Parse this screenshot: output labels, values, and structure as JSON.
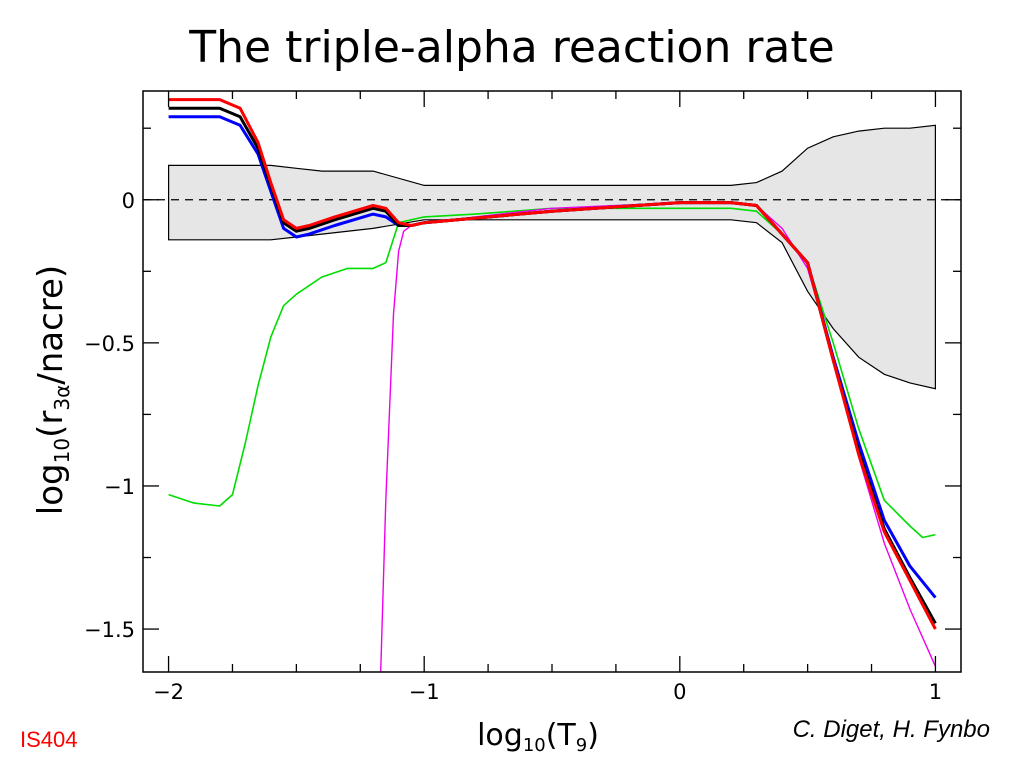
{
  "slide": {
    "title": "The triple-alpha reaction rate",
    "experiment_tag": "IS404",
    "credit": "C. Diget, H. Fynbo"
  },
  "chart_data": {
    "type": "line",
    "xlabel_main": "log",
    "xlabel_sub": "10",
    "xlabel_arg": "(T",
    "xlabel_arg_sub": "9",
    "xlabel_close": ")",
    "ylabel_main": "log",
    "ylabel_sub": "10",
    "ylabel_arg": "(r",
    "ylabel_arg_sub": "3α",
    "ylabel_rest": "/nacre)",
    "xlim": [
      -2.1,
      1.1
    ],
    "ylim": [
      -1.65,
      0.38
    ],
    "x_ticks": [
      {
        "value": -2,
        "label": "−2"
      },
      {
        "value": -1,
        "label": "−1"
      },
      {
        "value": 0,
        "label": "0"
      },
      {
        "value": 1,
        "label": "1"
      }
    ],
    "y_ticks": [
      {
        "value": 0,
        "label": "0"
      },
      {
        "value": -0.5,
        "label": "−0.5"
      },
      {
        "value": -1,
        "label": "−1"
      },
      {
        "value": -1.5,
        "label": "−1.5"
      }
    ],
    "x_minor_step": 0.25,
    "y_minor_step": 0.25,
    "reference_line": {
      "y": 0,
      "style": "dashed"
    },
    "band": {
      "name": "uncertainty",
      "fill": "#e6e6e6",
      "stroke": "#000000",
      "x": [
        -2.0,
        -1.6,
        -1.5,
        -1.4,
        -1.2,
        -1.0,
        -0.5,
        0.0,
        0.2,
        0.3,
        0.4,
        0.5,
        0.6,
        0.7,
        0.8,
        0.9,
        1.0
      ],
      "upper": [
        0.12,
        0.12,
        0.11,
        0.1,
        0.1,
        0.05,
        0.05,
        0.05,
        0.05,
        0.06,
        0.1,
        0.18,
        0.22,
        0.24,
        0.25,
        0.25,
        0.26
      ],
      "lower": [
        -0.14,
        -0.14,
        -0.13,
        -0.12,
        -0.1,
        -0.07,
        -0.07,
        -0.07,
        -0.07,
        -0.08,
        -0.15,
        -0.32,
        -0.45,
        -0.55,
        -0.61,
        -0.64,
        -0.66
      ]
    },
    "series": [
      {
        "color": "#00dd00",
        "width": 1.6,
        "x": [
          -2.0,
          -1.9,
          -1.8,
          -1.75,
          -1.7,
          -1.65,
          -1.6,
          -1.55,
          -1.5,
          -1.4,
          -1.3,
          -1.2,
          -1.15,
          -1.1,
          -1.0,
          -0.8,
          -0.5,
          0.0,
          0.2,
          0.3,
          0.4,
          0.5,
          0.6,
          0.7,
          0.8,
          0.9,
          0.95,
          1.0
        ],
        "y": [
          -1.03,
          -1.06,
          -1.07,
          -1.03,
          -0.85,
          -0.65,
          -0.48,
          -0.37,
          -0.33,
          -0.27,
          -0.24,
          -0.24,
          -0.22,
          -0.08,
          -0.06,
          -0.05,
          -0.03,
          -0.03,
          -0.03,
          -0.04,
          -0.12,
          -0.22,
          -0.5,
          -0.8,
          -1.05,
          -1.14,
          -1.18,
          -1.17
        ]
      },
      {
        "color": "#ee00ee",
        "width": 1.4,
        "x": [
          -1.17,
          -1.15,
          -1.12,
          -1.1,
          -1.08,
          -1.05,
          -1.0,
          -0.8,
          -0.5,
          0.0,
          0.2,
          0.3,
          0.4,
          0.5,
          0.6,
          0.7,
          0.8,
          0.9,
          1.0
        ],
        "y": [
          -1.65,
          -1.05,
          -0.4,
          -0.18,
          -0.11,
          -0.09,
          -0.08,
          -0.06,
          -0.03,
          -0.01,
          -0.01,
          -0.02,
          -0.1,
          -0.24,
          -0.55,
          -0.9,
          -1.2,
          -1.43,
          -1.63
        ]
      },
      {
        "color": "#0000ff",
        "width": 3,
        "x": [
          -2.0,
          -1.8,
          -1.72,
          -1.65,
          -1.6,
          -1.55,
          -1.5,
          -1.45,
          -1.35,
          -1.2,
          -1.15,
          -1.1,
          -1.05,
          -1.0,
          -0.5,
          0.0,
          0.2,
          0.3,
          0.4,
          0.5,
          0.6,
          0.7,
          0.8,
          0.9,
          1.0
        ],
        "y": [
          0.29,
          0.29,
          0.26,
          0.16,
          0.03,
          -0.1,
          -0.13,
          -0.12,
          -0.09,
          -0.05,
          -0.06,
          -0.09,
          -0.09,
          -0.08,
          -0.04,
          -0.01,
          -0.01,
          -0.02,
          -0.12,
          -0.22,
          -0.55,
          -0.85,
          -1.12,
          -1.28,
          -1.39
        ]
      },
      {
        "color": "#000000",
        "width": 3,
        "x": [
          -2.0,
          -1.8,
          -1.72,
          -1.65,
          -1.6,
          -1.55,
          -1.5,
          -1.45,
          -1.35,
          -1.2,
          -1.15,
          -1.1,
          -1.05,
          -1.0,
          -0.5,
          0.0,
          0.2,
          0.3,
          0.4,
          0.5,
          0.6,
          0.7,
          0.8,
          0.9,
          1.0
        ],
        "y": [
          0.32,
          0.32,
          0.29,
          0.18,
          0.05,
          -0.08,
          -0.11,
          -0.1,
          -0.07,
          -0.03,
          -0.04,
          -0.09,
          -0.09,
          -0.08,
          -0.04,
          -0.01,
          -0.01,
          -0.02,
          -0.12,
          -0.22,
          -0.56,
          -0.88,
          -1.15,
          -1.32,
          -1.48
        ]
      },
      {
        "color": "#ff0000",
        "width": 3,
        "x": [
          -2.0,
          -1.8,
          -1.72,
          -1.65,
          -1.6,
          -1.55,
          -1.5,
          -1.45,
          -1.35,
          -1.2,
          -1.15,
          -1.1,
          -1.05,
          -1.0,
          -0.5,
          0.0,
          0.2,
          0.3,
          0.4,
          0.5,
          0.6,
          0.7,
          0.8,
          0.9,
          1.0
        ],
        "y": [
          0.35,
          0.35,
          0.32,
          0.2,
          0.06,
          -0.07,
          -0.1,
          -0.09,
          -0.06,
          -0.02,
          -0.03,
          -0.08,
          -0.09,
          -0.08,
          -0.04,
          -0.01,
          -0.01,
          -0.02,
          -0.12,
          -0.22,
          -0.56,
          -0.89,
          -1.16,
          -1.33,
          -1.5
        ]
      }
    ]
  }
}
